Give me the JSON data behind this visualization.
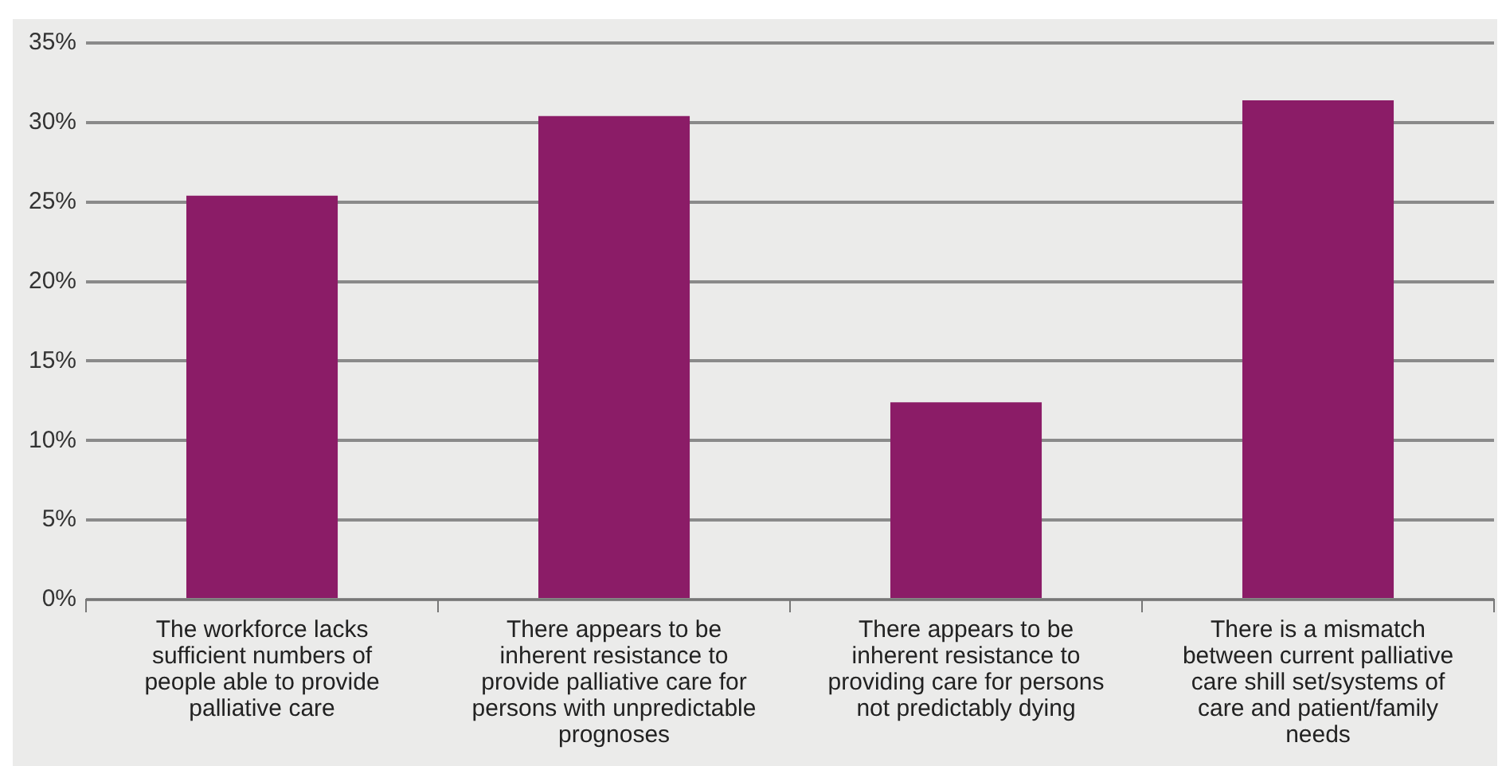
{
  "chart_data": {
    "type": "bar",
    "categories": [
      "The workforce lacks sufficient numbers of people able to provide palliative care",
      "There appears to be inherent resistance to provide palliative care for persons with unpredictable prognoses",
      "There appears to be inherent resistance to providing care for persons not predictably dying",
      "There is a mismatch between current palliative care shill set/systems of care and patient/family needs"
    ],
    "values": [
      25.4,
      30.4,
      12.4,
      31.4
    ],
    "color": "#8b1c67",
    "ylim": [
      0,
      35
    ],
    "yticks": [
      {
        "value": 0,
        "label": "0%"
      },
      {
        "value": 5,
        "label": "5%"
      },
      {
        "value": 10,
        "label": "10%"
      },
      {
        "value": 15,
        "label": "15%"
      },
      {
        "value": 20,
        "label": "20%"
      },
      {
        "value": 25,
        "label": "25%"
      },
      {
        "value": 30,
        "label": "30%"
      },
      {
        "value": 35,
        "label": "35%"
      }
    ],
    "grid": "y"
  }
}
